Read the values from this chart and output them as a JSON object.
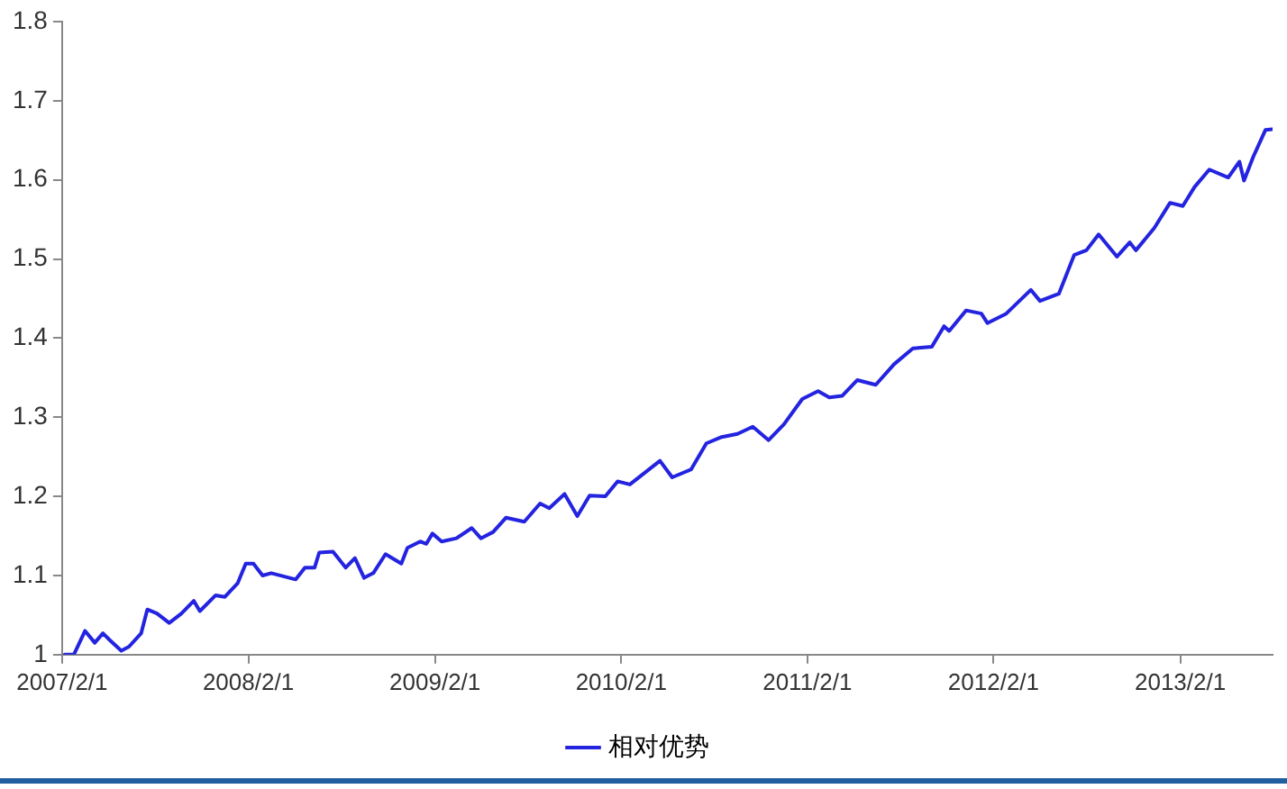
{
  "chart_data": {
    "type": "line",
    "legend": "bottom",
    "marker": "none",
    "line_style": "solid",
    "xlim": [
      "2007-02-01",
      "2013-08-01"
    ],
    "xticks": [
      {
        "value": "2007-02-01",
        "label": "2007/2/1"
      },
      {
        "value": "2008-02-01",
        "label": "2008/2/1"
      },
      {
        "value": "2009-02-01",
        "label": "2009/2/1"
      },
      {
        "value": "2010-02-01",
        "label": "2010/2/1"
      },
      {
        "value": "2011-02-01",
        "label": "2011/2/1"
      },
      {
        "value": "2012-02-01",
        "label": "2012/2/1"
      },
      {
        "value": "2013-02-01",
        "label": "2013/2/1"
      }
    ],
    "ylim": [
      1,
      1.8
    ],
    "yticks": [
      1,
      1.1,
      1.2,
      1.3,
      1.4,
      1.5,
      1.6,
      1.7,
      1.8
    ],
    "x": [
      "2007-02-06",
      "2007-02-24",
      "2007-03-18",
      "2007-04-06",
      "2007-04-22",
      "2007-05-06",
      "2007-05-28",
      "2007-06-12",
      "2007-07-06",
      "2007-07-18",
      "2007-08-06",
      "2007-08-30",
      "2007-09-23",
      "2007-10-17",
      "2007-10-29",
      "2007-11-29",
      "2007-12-17",
      "2008-01-11",
      "2008-01-27",
      "2008-02-11",
      "2008-02-29",
      "2008-03-17",
      "2008-05-04",
      "2008-05-22",
      "2008-06-10",
      "2008-06-19",
      "2008-07-16",
      "2008-08-10",
      "2008-08-28",
      "2008-09-15",
      "2008-10-03",
      "2008-10-27",
      "2008-11-27",
      "2008-12-09",
      "2009-01-03",
      "2009-01-15",
      "2009-01-27",
      "2009-02-14",
      "2009-03-15",
      "2009-04-14",
      "2009-05-02",
      "2009-05-26",
      "2009-06-20",
      "2009-07-26",
      "2009-08-26",
      "2009-09-13",
      "2009-10-13",
      "2009-11-07",
      "2009-12-01",
      "2010-01-01",
      "2010-01-25",
      "2010-02-18",
      "2010-04-18",
      "2010-05-12",
      "2010-06-18",
      "2010-07-18",
      "2010-08-17",
      "2010-09-17",
      "2010-10-17",
      "2010-11-17",
      "2010-12-17",
      "2011-01-22",
      "2011-02-22",
      "2011-03-16",
      "2011-04-10",
      "2011-05-10",
      "2011-06-15",
      "2011-07-21",
      "2011-08-27",
      "2011-10-03",
      "2011-10-27",
      "2011-11-06",
      "2011-12-09",
      "2012-01-08",
      "2012-01-20",
      "2012-02-26",
      "2012-04-14",
      "2012-05-02",
      "2012-06-08",
      "2012-07-08",
      "2012-08-01",
      "2012-08-25",
      "2012-09-30",
      "2012-10-25",
      "2012-11-06",
      "2012-12-12",
      "2013-01-12",
      "2013-02-06",
      "2013-03-01",
      "2013-03-30",
      "2013-05-06",
      "2013-05-28",
      "2013-06-06",
      "2013-06-24",
      "2013-07-18",
      "2013-08-01"
    ],
    "series": [
      {
        "name": "相对优势",
        "color": "#2323e0",
        "values": [
          1.0,
          1.0,
          1.03,
          1.015,
          1.027,
          1.018,
          1.005,
          1.01,
          1.027,
          1.057,
          1.052,
          1.04,
          1.052,
          1.068,
          1.055,
          1.075,
          1.073,
          1.09,
          1.115,
          1.115,
          1.1,
          1.103,
          1.095,
          1.11,
          1.11,
          1.129,
          1.13,
          1.11,
          1.122,
          1.097,
          1.103,
          1.127,
          1.115,
          1.135,
          1.143,
          1.14,
          1.153,
          1.143,
          1.147,
          1.16,
          1.147,
          1.155,
          1.173,
          1.168,
          1.191,
          1.185,
          1.203,
          1.175,
          1.201,
          1.2,
          1.219,
          1.215,
          1.245,
          1.224,
          1.234,
          1.267,
          1.275,
          1.279,
          1.288,
          1.271,
          1.291,
          1.323,
          1.333,
          1.325,
          1.327,
          1.347,
          1.341,
          1.367,
          1.387,
          1.389,
          1.415,
          1.409,
          1.435,
          1.431,
          1.419,
          1.431,
          1.461,
          1.447,
          1.456,
          1.505,
          1.511,
          1.531,
          1.503,
          1.521,
          1.511,
          1.539,
          1.571,
          1.567,
          1.591,
          1.613,
          1.603,
          1.623,
          1.599,
          1.629,
          1.663,
          1.664
        ]
      }
    ]
  }
}
